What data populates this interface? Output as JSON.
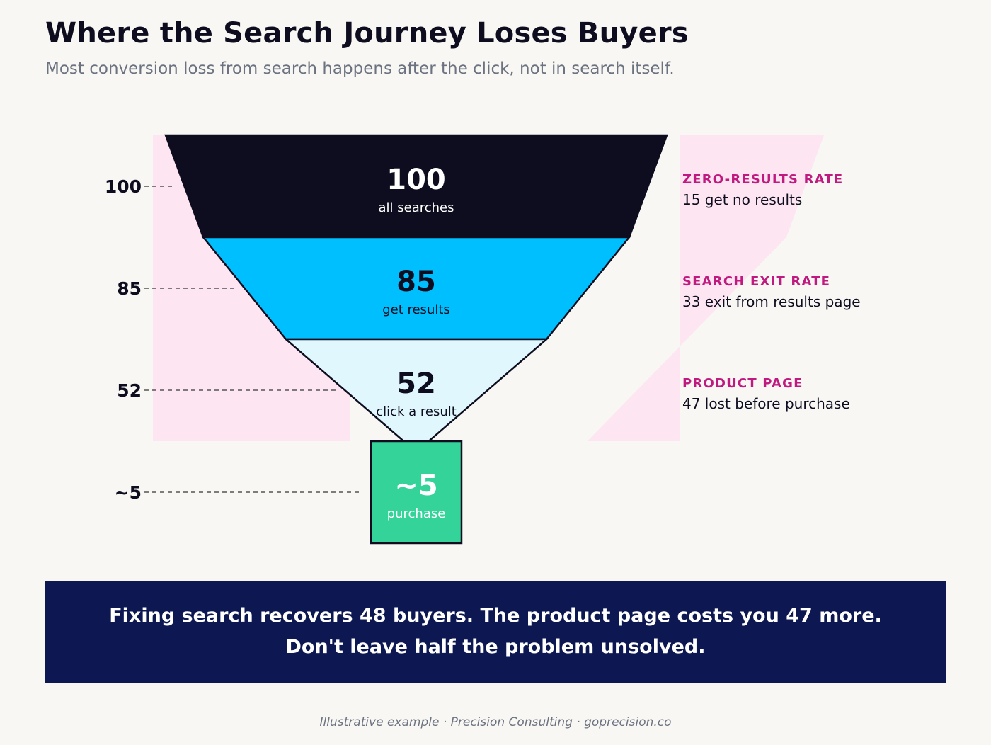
{
  "header": {
    "title": "Where the Search Journey Loses Buyers",
    "subtitle": "Most conversion loss from search happens after the click, not in search itself."
  },
  "chart_data": {
    "type": "funnel",
    "stages": [
      {
        "value": 100,
        "value_label": "100",
        "axis_label": "100",
        "label": "all searches",
        "color": "#0d0d1f",
        "text_color": "#ffffff"
      },
      {
        "value": 85,
        "value_label": "85",
        "axis_label": "85",
        "label": "get results",
        "color": "#00bfff",
        "text_color": "#0d0d1f"
      },
      {
        "value": 52,
        "value_label": "52",
        "axis_label": "52",
        "label": "click a result",
        "color": "#e0f7fd",
        "text_color": "#0d0d1f"
      },
      {
        "value": 5,
        "value_label": "~5",
        "axis_label": "~5",
        "label": "purchase",
        "color": "#34d399",
        "text_color": "#ffffff"
      }
    ],
    "drop_offs": [
      {
        "title": "ZERO-RESULTS RATE",
        "text": "15 get no results",
        "lost": 15
      },
      {
        "title": "SEARCH EXIT RATE",
        "text": "33 exit from results page",
        "lost": 33
      },
      {
        "title": "PRODUCT PAGE",
        "text": "47 lost before purchase",
        "lost": 47
      }
    ],
    "colors": {
      "loss_area": "#fde6f1",
      "annotation_title": "#c0197f",
      "annotation_text": "#0d0d1f",
      "outline": "#0d0d1f"
    }
  },
  "banner": {
    "line1": "Fixing search recovers 48 buyers. The product page costs you 47 more.",
    "line2": "Don't leave half the problem unsolved."
  },
  "footer": {
    "text": "Illustrative example · Precision Consulting · goprecision.co"
  }
}
